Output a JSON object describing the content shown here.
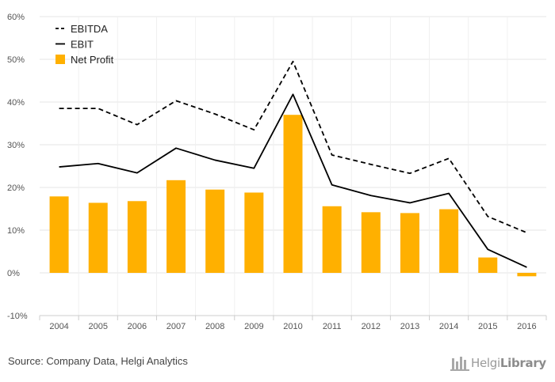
{
  "chart_data": {
    "type": "bar",
    "categories": [
      "2004",
      "2005",
      "2006",
      "2007",
      "2008",
      "2009",
      "2010",
      "2011",
      "2012",
      "2013",
      "2014",
      "2015",
      "2016"
    ],
    "ylim": [
      -10,
      60
    ],
    "yticks": [
      "-10%",
      "0%",
      "10%",
      "20%",
      "30%",
      "40%",
      "50%",
      "60%"
    ],
    "ytick_values": [
      -10,
      0,
      10,
      20,
      30,
      40,
      50,
      60
    ],
    "grid": true,
    "legend_position": "top-left",
    "series": [
      {
        "name": "EBITDA",
        "kind": "line",
        "style": "dashed",
        "values": [
          38.5,
          38.5,
          34.7,
          40.3,
          37.2,
          33.5,
          49.5,
          27.6,
          25.4,
          23.3,
          26.8,
          13.2,
          9.4
        ]
      },
      {
        "name": "EBIT",
        "kind": "line",
        "style": "solid",
        "values": [
          24.8,
          25.6,
          23.4,
          29.2,
          26.4,
          24.5,
          41.8,
          20.6,
          18.1,
          16.4,
          18.6,
          5.5,
          1.3
        ]
      },
      {
        "name": "Net Profit",
        "kind": "bar",
        "values": [
          17.9,
          16.4,
          16.8,
          21.7,
          19.5,
          18.8,
          37.0,
          15.6,
          14.2,
          14.0,
          14.9,
          3.6,
          -0.8
        ]
      }
    ],
    "colors": {
      "bar": "#ffb000",
      "line": "#000000",
      "grid": "#e4e4e4"
    }
  },
  "footer": {
    "source": "Source: Company Data, Helgi Analytics",
    "logo_light": "Helgi",
    "logo_bold": "Library"
  }
}
